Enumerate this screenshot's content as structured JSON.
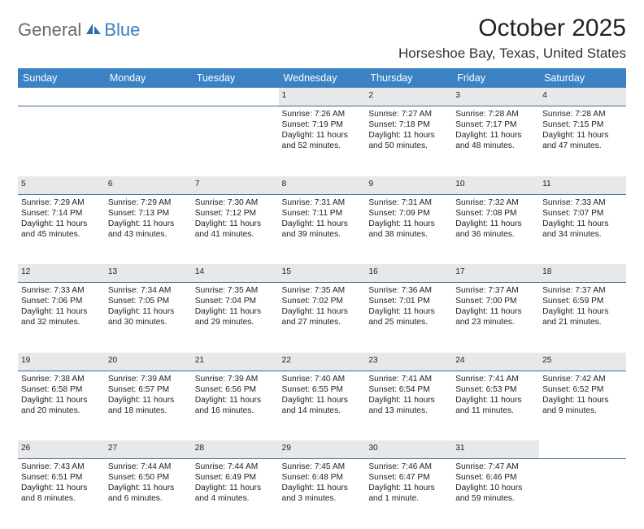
{
  "logo": {
    "general": "General",
    "blue": "Blue"
  },
  "title": "October 2025",
  "location": "Horseshoe Bay, Texas, United States",
  "colors": {
    "header_bg": "#3b82c4",
    "header_text": "#ffffff",
    "daynum_bg": "#e8e8e8",
    "row_border": "#3b6a93",
    "logo_gray": "#6b6b6b",
    "logo_blue": "#3b7fc4"
  },
  "weekdays": [
    "Sunday",
    "Monday",
    "Tuesday",
    "Wednesday",
    "Thursday",
    "Friday",
    "Saturday"
  ],
  "weeks": [
    [
      {
        "n": "",
        "sr": "",
        "ss": "",
        "dl": ""
      },
      {
        "n": "",
        "sr": "",
        "ss": "",
        "dl": ""
      },
      {
        "n": "",
        "sr": "",
        "ss": "",
        "dl": ""
      },
      {
        "n": "1",
        "sr": "Sunrise: 7:26 AM",
        "ss": "Sunset: 7:19 PM",
        "dl": "Daylight: 11 hours and 52 minutes."
      },
      {
        "n": "2",
        "sr": "Sunrise: 7:27 AM",
        "ss": "Sunset: 7:18 PM",
        "dl": "Daylight: 11 hours and 50 minutes."
      },
      {
        "n": "3",
        "sr": "Sunrise: 7:28 AM",
        "ss": "Sunset: 7:17 PM",
        "dl": "Daylight: 11 hours and 48 minutes."
      },
      {
        "n": "4",
        "sr": "Sunrise: 7:28 AM",
        "ss": "Sunset: 7:15 PM",
        "dl": "Daylight: 11 hours and 47 minutes."
      }
    ],
    [
      {
        "n": "5",
        "sr": "Sunrise: 7:29 AM",
        "ss": "Sunset: 7:14 PM",
        "dl": "Daylight: 11 hours and 45 minutes."
      },
      {
        "n": "6",
        "sr": "Sunrise: 7:29 AM",
        "ss": "Sunset: 7:13 PM",
        "dl": "Daylight: 11 hours and 43 minutes."
      },
      {
        "n": "7",
        "sr": "Sunrise: 7:30 AM",
        "ss": "Sunset: 7:12 PM",
        "dl": "Daylight: 11 hours and 41 minutes."
      },
      {
        "n": "8",
        "sr": "Sunrise: 7:31 AM",
        "ss": "Sunset: 7:11 PM",
        "dl": "Daylight: 11 hours and 39 minutes."
      },
      {
        "n": "9",
        "sr": "Sunrise: 7:31 AM",
        "ss": "Sunset: 7:09 PM",
        "dl": "Daylight: 11 hours and 38 minutes."
      },
      {
        "n": "10",
        "sr": "Sunrise: 7:32 AM",
        "ss": "Sunset: 7:08 PM",
        "dl": "Daylight: 11 hours and 36 minutes."
      },
      {
        "n": "11",
        "sr": "Sunrise: 7:33 AM",
        "ss": "Sunset: 7:07 PM",
        "dl": "Daylight: 11 hours and 34 minutes."
      }
    ],
    [
      {
        "n": "12",
        "sr": "Sunrise: 7:33 AM",
        "ss": "Sunset: 7:06 PM",
        "dl": "Daylight: 11 hours and 32 minutes."
      },
      {
        "n": "13",
        "sr": "Sunrise: 7:34 AM",
        "ss": "Sunset: 7:05 PM",
        "dl": "Daylight: 11 hours and 30 minutes."
      },
      {
        "n": "14",
        "sr": "Sunrise: 7:35 AM",
        "ss": "Sunset: 7:04 PM",
        "dl": "Daylight: 11 hours and 29 minutes."
      },
      {
        "n": "15",
        "sr": "Sunrise: 7:35 AM",
        "ss": "Sunset: 7:02 PM",
        "dl": "Daylight: 11 hours and 27 minutes."
      },
      {
        "n": "16",
        "sr": "Sunrise: 7:36 AM",
        "ss": "Sunset: 7:01 PM",
        "dl": "Daylight: 11 hours and 25 minutes."
      },
      {
        "n": "17",
        "sr": "Sunrise: 7:37 AM",
        "ss": "Sunset: 7:00 PM",
        "dl": "Daylight: 11 hours and 23 minutes."
      },
      {
        "n": "18",
        "sr": "Sunrise: 7:37 AM",
        "ss": "Sunset: 6:59 PM",
        "dl": "Daylight: 11 hours and 21 minutes."
      }
    ],
    [
      {
        "n": "19",
        "sr": "Sunrise: 7:38 AM",
        "ss": "Sunset: 6:58 PM",
        "dl": "Daylight: 11 hours and 20 minutes."
      },
      {
        "n": "20",
        "sr": "Sunrise: 7:39 AM",
        "ss": "Sunset: 6:57 PM",
        "dl": "Daylight: 11 hours and 18 minutes."
      },
      {
        "n": "21",
        "sr": "Sunrise: 7:39 AM",
        "ss": "Sunset: 6:56 PM",
        "dl": "Daylight: 11 hours and 16 minutes."
      },
      {
        "n": "22",
        "sr": "Sunrise: 7:40 AM",
        "ss": "Sunset: 6:55 PM",
        "dl": "Daylight: 11 hours and 14 minutes."
      },
      {
        "n": "23",
        "sr": "Sunrise: 7:41 AM",
        "ss": "Sunset: 6:54 PM",
        "dl": "Daylight: 11 hours and 13 minutes."
      },
      {
        "n": "24",
        "sr": "Sunrise: 7:41 AM",
        "ss": "Sunset: 6:53 PM",
        "dl": "Daylight: 11 hours and 11 minutes."
      },
      {
        "n": "25",
        "sr": "Sunrise: 7:42 AM",
        "ss": "Sunset: 6:52 PM",
        "dl": "Daylight: 11 hours and 9 minutes."
      }
    ],
    [
      {
        "n": "26",
        "sr": "Sunrise: 7:43 AM",
        "ss": "Sunset: 6:51 PM",
        "dl": "Daylight: 11 hours and 8 minutes."
      },
      {
        "n": "27",
        "sr": "Sunrise: 7:44 AM",
        "ss": "Sunset: 6:50 PM",
        "dl": "Daylight: 11 hours and 6 minutes."
      },
      {
        "n": "28",
        "sr": "Sunrise: 7:44 AM",
        "ss": "Sunset: 6:49 PM",
        "dl": "Daylight: 11 hours and 4 minutes."
      },
      {
        "n": "29",
        "sr": "Sunrise: 7:45 AM",
        "ss": "Sunset: 6:48 PM",
        "dl": "Daylight: 11 hours and 3 minutes."
      },
      {
        "n": "30",
        "sr": "Sunrise: 7:46 AM",
        "ss": "Sunset: 6:47 PM",
        "dl": "Daylight: 11 hours and 1 minute."
      },
      {
        "n": "31",
        "sr": "Sunrise: 7:47 AM",
        "ss": "Sunset: 6:46 PM",
        "dl": "Daylight: 10 hours and 59 minutes."
      },
      {
        "n": "",
        "sr": "",
        "ss": "",
        "dl": ""
      }
    ]
  ]
}
